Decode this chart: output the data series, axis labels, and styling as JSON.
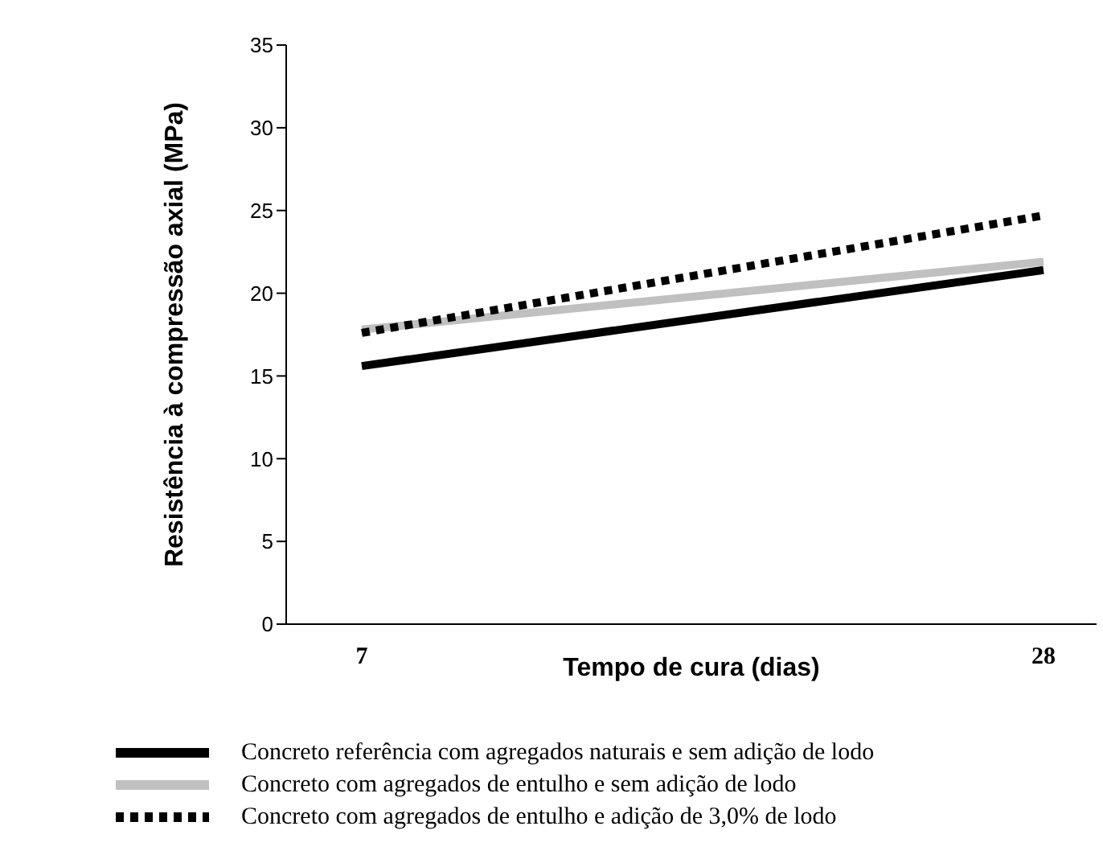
{
  "chart_data": {
    "type": "line",
    "xlabel": "Tempo de cura (dias)",
    "ylabel": "Resistência à compressão axial (MPa)",
    "categories": [
      "7",
      "28"
    ],
    "ylim": [
      0,
      35
    ],
    "yticks": [
      0,
      5,
      10,
      15,
      20,
      25,
      30,
      35
    ],
    "grid": false,
    "legend": "bottom",
    "marker": "none",
    "series": [
      {
        "name": "Concreto referência com agregados naturais e sem adição de lodo",
        "color": "#000000",
        "line_style": "solid",
        "values": [
          15.6,
          21.4
        ]
      },
      {
        "name": "Concreto com agregados de entulho e sem adição de lodo",
        "color": "#c0c0c0",
        "line_style": "solid",
        "values": [
          17.8,
          21.9
        ]
      },
      {
        "name": "Concreto com agregados de entulho e adição de 3,0% de lodo",
        "color": "#000000",
        "line_style": "dotted",
        "values": [
          17.6,
          24.7
        ]
      }
    ]
  }
}
